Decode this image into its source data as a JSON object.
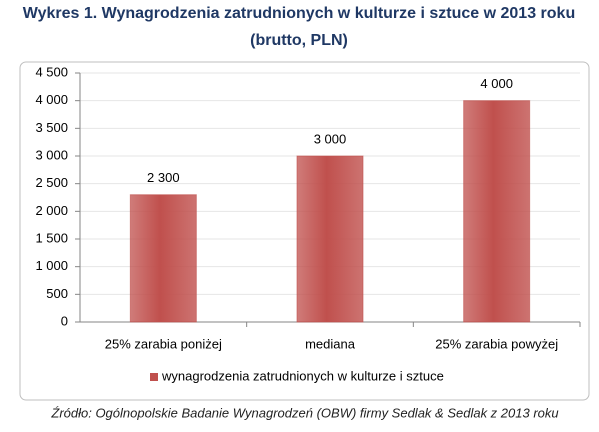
{
  "chart_data": {
    "type": "bar",
    "title": "Wykres 1. Wynagrodzenia zatrudnionych w kulturze i sztuce w 2013 roku",
    "subtitle": "(brutto, PLN)",
    "categories": [
      "25% zarabia poniżej",
      "mediana",
      "25% zarabia powyżej"
    ],
    "series": [
      {
        "name": "wynagrodzenia zatrudnionych w kulturze i sztuce",
        "color": "#c0504d",
        "values": [
          2300,
          3000,
          4000
        ],
        "value_labels": [
          "2 300",
          "3 000",
          "4 000"
        ]
      }
    ],
    "ylim": [
      0,
      4500
    ],
    "yticks": [
      0,
      {
        "value": 500,
        "label": "500"
      },
      {
        "value": 1000,
        "label": "1 000"
      },
      {
        "value": 1500,
        "label": "1 500"
      },
      {
        "value": 2000,
        "label": "2 000"
      },
      {
        "value": 2500,
        "label": "2 500"
      },
      {
        "value": 3000,
        "label": "3 000"
      },
      {
        "value": 3500,
        "label": "3 500"
      },
      {
        "value": 4000,
        "label": "4 000"
      },
      {
        "value": 4500,
        "label": "4 500"
      }
    ],
    "grid": true,
    "legend": "bottom",
    "source": "Źródło: Ogólnopolskie Badanie Wynagrodzeń (OBW) firmy Sedlak & Sedlak z 2013 roku"
  }
}
